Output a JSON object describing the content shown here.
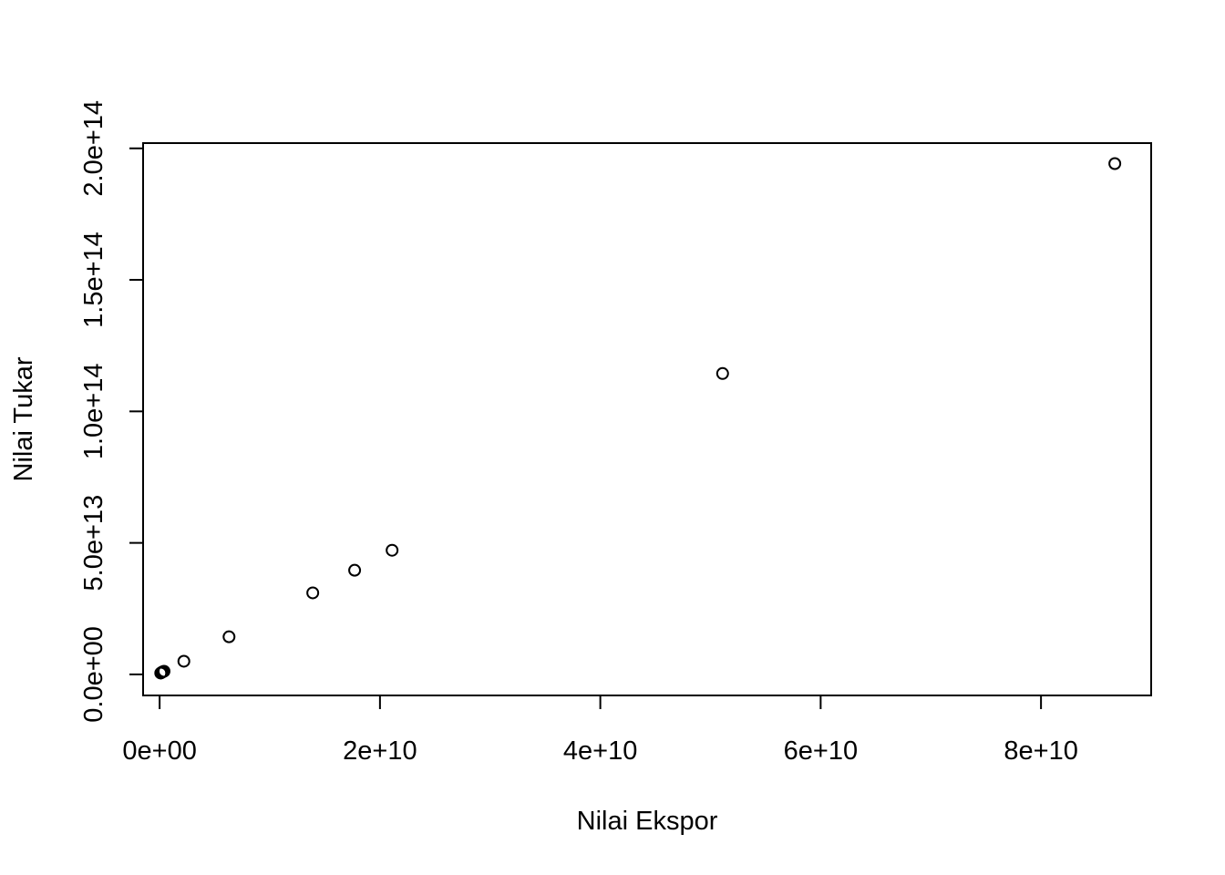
{
  "chart_data": {
    "type": "scatter",
    "title": "",
    "xlabel": "Nilai Ekspor",
    "ylabel": "Nilai Tukar",
    "xlim": [
      -1500000000.0,
      90000000000.0
    ],
    "ylim": [
      -8000000000000.0,
      202000000000000.0
    ],
    "x_ticks": [
      0,
      20000000000.0,
      40000000000.0,
      60000000000.0,
      80000000000.0
    ],
    "x_tick_labels": [
      "0e+00",
      "2e+10",
      "4e+10",
      "6e+10",
      "8e+10"
    ],
    "y_ticks": [
      0,
      50000000000000.0,
      100000000000000.0,
      150000000000000.0,
      200000000000000.0
    ],
    "y_tick_labels": [
      "0.0e+00",
      "5.0e+13",
      "1.0e+14",
      "1.5e+14",
      "2.0e+14"
    ],
    "grid": false,
    "series": [
      {
        "x": [
          100000000.0,
          200000000.0,
          300000000.0,
          400000000.0,
          2200000000.0,
          6300000000.0,
          13900000000.0,
          17700000000.0,
          21100000000.0,
          51100000000.0,
          86700000000.0
        ],
        "y": [
          500000000000.0,
          800000000000.0,
          1000000000000.0,
          1200000000000.0,
          5000000000000.0,
          14300000000000.0,
          31000000000000.0,
          39600000000000.0,
          47200000000000.0,
          114400000000000.0,
          194200000000000.0
        ]
      }
    ]
  }
}
